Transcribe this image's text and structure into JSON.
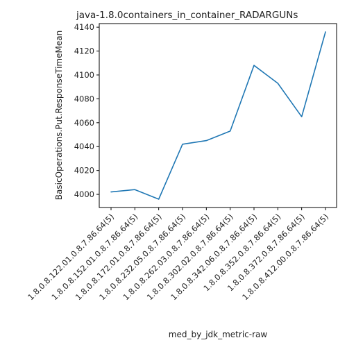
{
  "chart_data": {
    "type": "line",
    "title": "java-1.8.0containers_in_container_RADARGUNs",
    "xlabel": "med_by_jdk_metric-raw",
    "ylabel": "BasicOperations.Put.ResponseTimeMean",
    "categories": [
      "1.8.0.8.122.01.0.8.7.86.64(5)",
      "1.8.0.8.152.01.0.8.7.86.64(5)",
      "1.8.0.8.172.01.0.8.7.86.64(5)",
      "1.8.0.8.232.05.0.8.7.86.64(5)",
      "1.8.0.8.262.03.0.8.7.86.64(5)",
      "1.8.0.8.302.02.0.8.7.86.64(5)",
      "1.8.0.8.342.06.0.8.7.86.64(5)",
      "1.8.0.8.352.0.8.7.86.64(5)",
      "1.8.0.8.372.0.8.7.86.64(5)",
      "1.8.0.8.412.00.0.8.7.86.64(5)"
    ],
    "series": [
      {
        "values": [
          4002,
          4004,
          3996,
          4042,
          4045,
          4053,
          4108,
          4093,
          4065,
          4136
        ]
      }
    ],
    "yticks": [
      4000,
      4020,
      4040,
      4060,
      4080,
      4100,
      4120,
      4140
    ],
    "ylim": [
      3989,
      4143
    ],
    "grid": false,
    "line_color": "#1f77b4"
  }
}
